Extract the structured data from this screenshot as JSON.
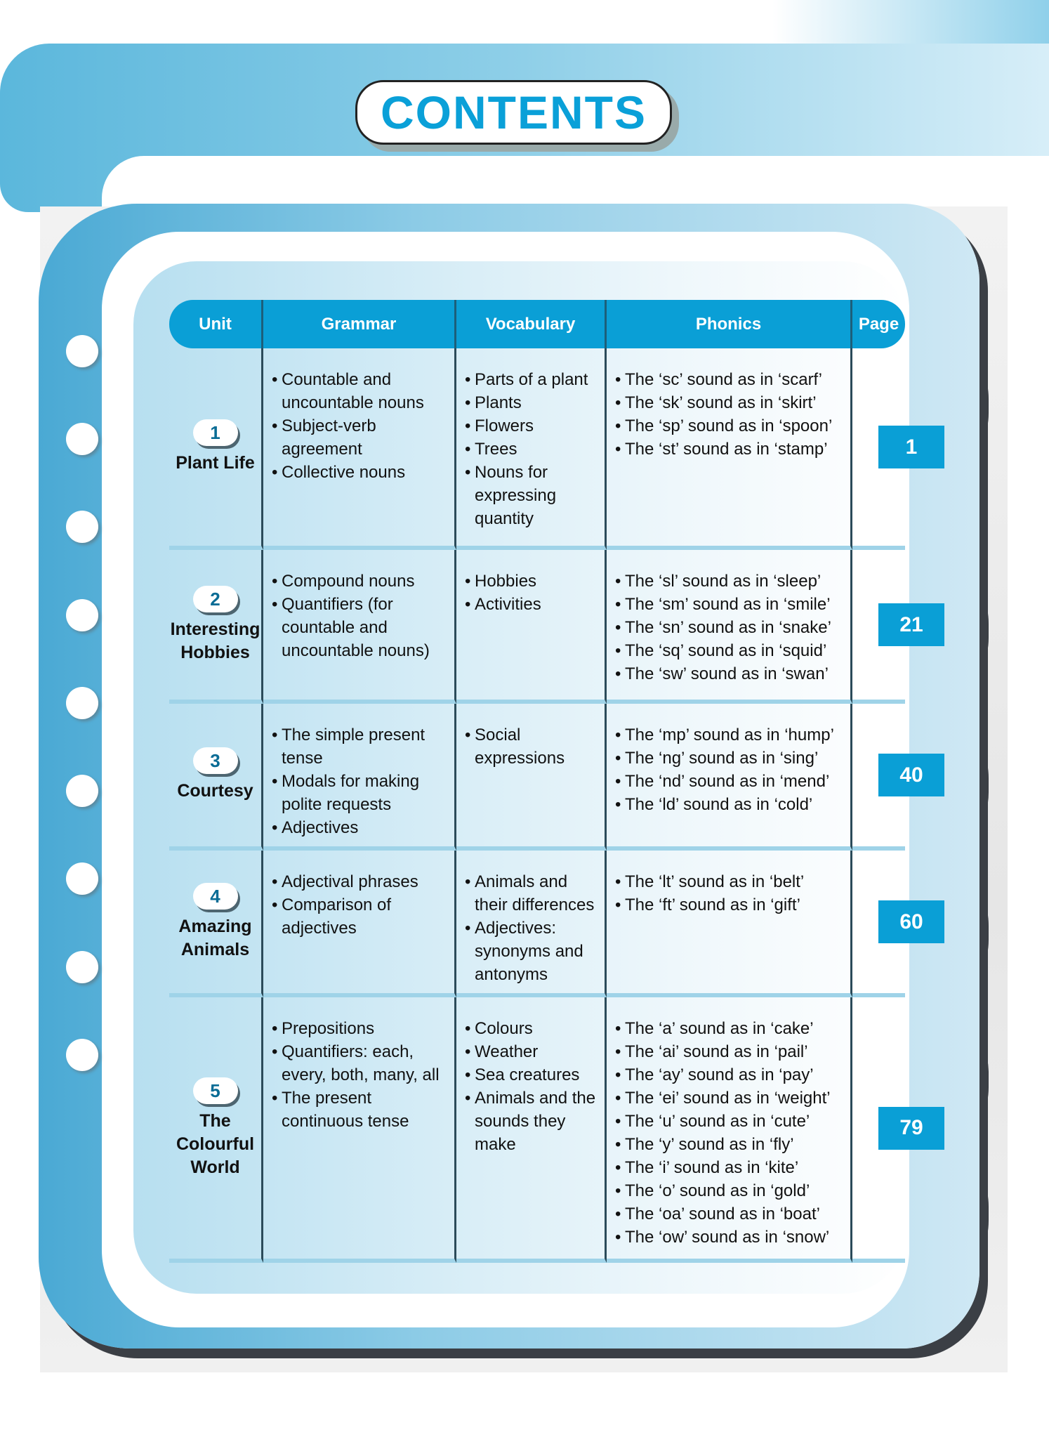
{
  "title": "CONTENTS",
  "headers": {
    "unit": "Unit",
    "grammar": "Grammar",
    "vocabulary": "Vocabulary",
    "phonics": "Phonics",
    "page": "Page"
  },
  "colors": {
    "accent": "#0a9fd6",
    "unit_text": "#0a6c95"
  },
  "rows": [
    {
      "num": "1",
      "name": "Plant Life",
      "grammar": [
        "Countable and uncountable nouns",
        "Subject-verb agreement",
        "Collective nouns"
      ],
      "vocabulary": [
        "Parts of a plant",
        "Plants",
        "Flowers",
        "Trees",
        "Nouns for expressing quantity"
      ],
      "phonics": [
        "The ‘sc’ sound as in ‘scarf’",
        "The ‘sk’ sound as in ‘skirt’",
        "The ‘sp’ sound as in ‘spoon’",
        "The ‘st’ sound as in ‘stamp’"
      ],
      "page": "1"
    },
    {
      "num": "2",
      "name": "Interesting Hobbies",
      "grammar": [
        "Compound nouns",
        "Quantifiers (for countable and uncountable nouns)"
      ],
      "vocabulary": [
        "Hobbies",
        "Activities"
      ],
      "phonics": [
        "The ‘sl’ sound as in ‘sleep’",
        "The ‘sm’ sound as in ‘smile’",
        "The ‘sn’ sound as in ‘snake’",
        "The ‘sq’ sound as in ‘squid’",
        "The ‘sw’ sound as in ‘swan’"
      ],
      "page": "21"
    },
    {
      "num": "3",
      "name": "Courtesy",
      "grammar": [
        "The simple present tense",
        "Modals for making polite requests",
        "Adjectives"
      ],
      "vocabulary": [
        "Social expressions"
      ],
      "phonics": [
        "The ‘mp’ sound as in ‘hump’",
        "The ‘ng’ sound as in ‘sing’",
        "The ‘nd’ sound as in ‘mend’",
        "The ‘ld’ sound as in ‘cold’"
      ],
      "page": "40"
    },
    {
      "num": "4",
      "name": "Amazing Animals",
      "grammar": [
        "Adjectival phrases",
        "Comparison of adjectives"
      ],
      "vocabulary": [
        "Animals and their differences",
        "Adjectives: synonyms and antonyms"
      ],
      "phonics": [
        "The ‘lt’ sound as in ‘belt’",
        "The ‘ft’ sound as in ‘gift’"
      ],
      "page": "60"
    },
    {
      "num": "5",
      "name": "The Colourful World",
      "grammar": [
        "Prepositions",
        "Quantifiers: each, every, both, many, all",
        "The present continuous tense"
      ],
      "vocabulary": [
        "Colours",
        "Weather",
        "Sea creatures",
        "Animals and the sounds they make"
      ],
      "phonics": [
        "The ‘a’ sound as in ‘cake’",
        "The ‘ai’ sound as in ‘pail’",
        "The ‘ay’ sound as in ‘pay’",
        "The ‘ei’ sound as in ‘weight’",
        "The ‘u’ sound as in ‘cute’",
        "The ‘y’ sound as in ‘fly’",
        "The ‘i’ sound as in ‘kite’",
        "The ‘o’ sound as in ‘gold’",
        "The ‘oa’ sound as in ‘boat’",
        "The ‘ow’ sound as in ‘snow’"
      ],
      "page": "79"
    }
  ]
}
